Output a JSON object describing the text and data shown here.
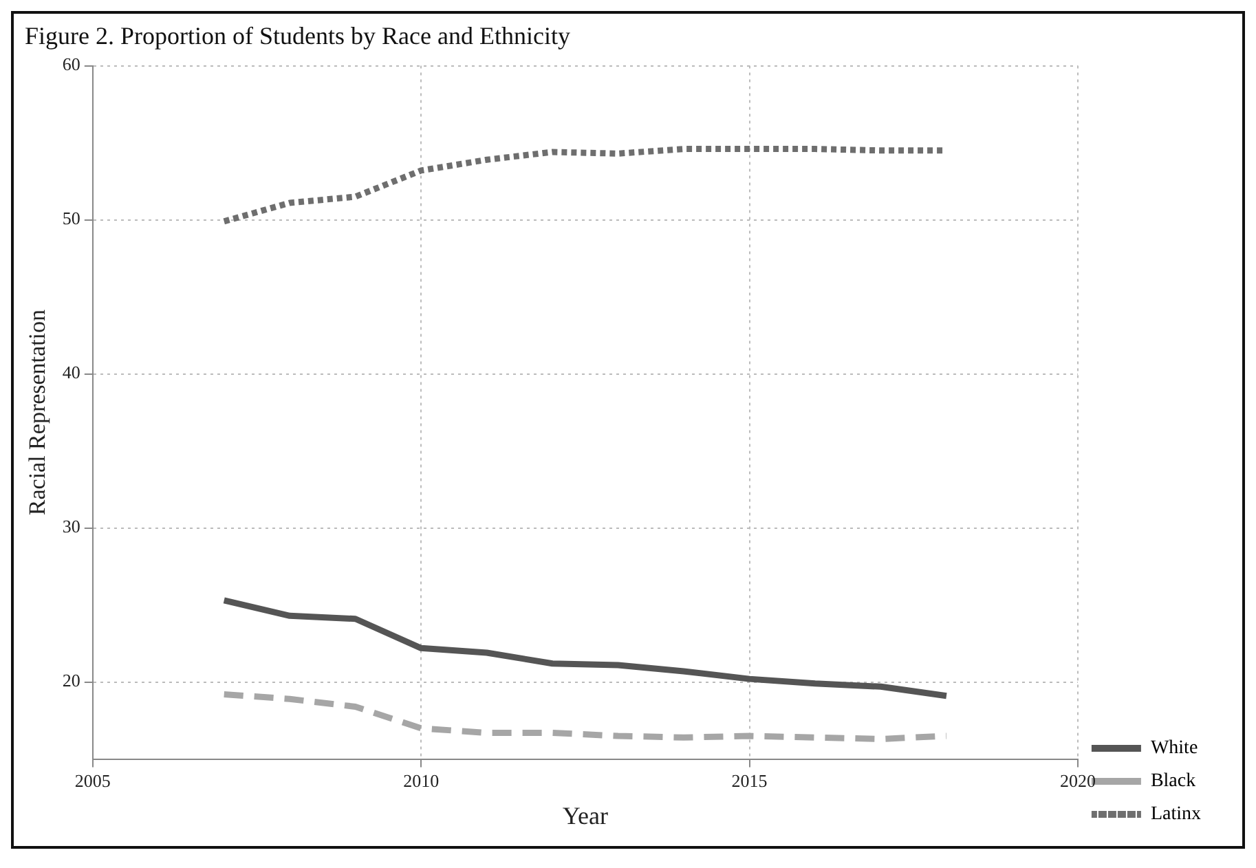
{
  "chart_data": {
    "type": "line",
    "title": "Figure 2. Proportion of Students by Race and Ethnicity",
    "xlabel": "Year",
    "ylabel": "Racial Representation",
    "x": [
      2007,
      2008,
      2009,
      2010,
      2011,
      2012,
      2013,
      2014,
      2015,
      2016,
      2017,
      2018
    ],
    "series": [
      {
        "name": "White",
        "color": "#555555",
        "line_style": "solid",
        "values": [
          25.3,
          24.3,
          24.1,
          22.2,
          21.9,
          21.2,
          21.1,
          20.7,
          20.2,
          19.9,
          19.7,
          19.1
        ]
      },
      {
        "name": "Black",
        "color": "#a6a6a6",
        "line_style": "dashed",
        "values": [
          19.2,
          18.9,
          18.4,
          17.0,
          16.7,
          16.7,
          16.5,
          16.4,
          16.5,
          16.4,
          16.3,
          16.5
        ]
      },
      {
        "name": "Latinx",
        "color": "#6e6e6e",
        "line_style": "dotted",
        "values": [
          49.9,
          51.1,
          51.5,
          53.2,
          53.9,
          54.4,
          54.3,
          54.6,
          54.6,
          54.6,
          54.5,
          54.5
        ]
      }
    ],
    "xlim": [
      2005,
      2020
    ],
    "xticks": [
      2005,
      2010,
      2015,
      2020
    ],
    "ylim": [
      15,
      60
    ],
    "yticks": [
      20,
      30,
      40,
      50,
      60
    ],
    "grid": true,
    "legend": "bottom right",
    "marker": "none"
  }
}
